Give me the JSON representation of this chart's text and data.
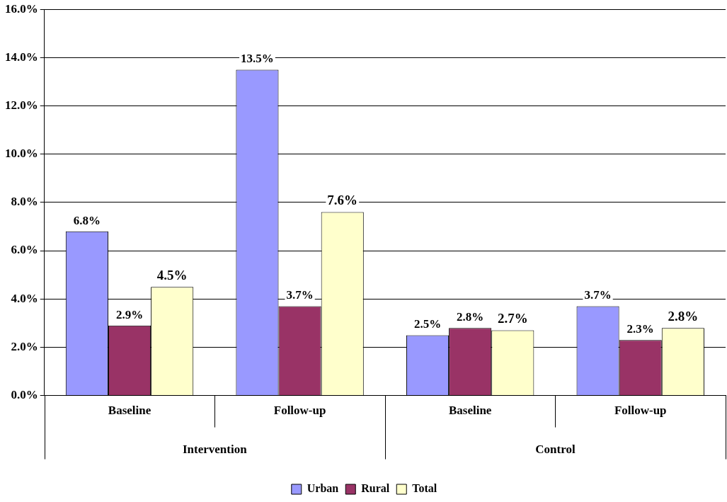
{
  "chart_data": {
    "type": "bar",
    "categories": [
      "Baseline",
      "Follow-up",
      "Baseline",
      "Follow-up"
    ],
    "annotations": [
      "Intervention",
      "Control"
    ],
    "series": [
      {
        "name": "Urban",
        "color": "#9999ff",
        "values": [
          6.8,
          13.5,
          2.5,
          3.7
        ],
        "value_labels": [
          "6.8%",
          "13.5%",
          "2.5%",
          "3.7%"
        ]
      },
      {
        "name": "Rural",
        "color": "#993366",
        "values": [
          2.9,
          3.7,
          2.8,
          2.3
        ],
        "value_labels": [
          "2.9%",
          "3.7%",
          "2.8%",
          "2.3%"
        ]
      },
      {
        "name": "Total",
        "color": "#ffffcc",
        "values": [
          4.5,
          7.6,
          2.7,
          2.8
        ],
        "value_labels": [
          "4.5%",
          "7.6%",
          "2.7%",
          "2.8%"
        ]
      }
    ],
    "ylim": [
      0,
      16
    ],
    "yticks": [
      {
        "value": 0,
        "label": "0.0%"
      },
      {
        "value": 2,
        "label": "2.0%"
      },
      {
        "value": 4,
        "label": "4.0%"
      },
      {
        "value": 6,
        "label": "6.0%"
      },
      {
        "value": 8,
        "label": "8.0%"
      },
      {
        "value": 10,
        "label": "10.0%"
      },
      {
        "value": 12,
        "label": "12.0%"
      },
      {
        "value": 14,
        "label": "14.0%"
      },
      {
        "value": 16,
        "label": "16.0%"
      }
    ],
    "grid": "y",
    "legend": "bottom"
  }
}
